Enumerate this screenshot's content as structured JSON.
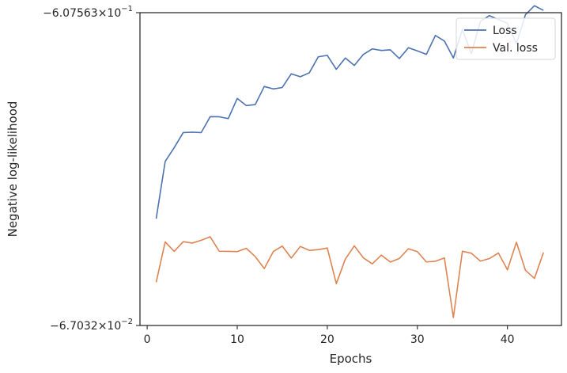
{
  "chart_data": {
    "type": "line",
    "title": "",
    "xlabel": "Epochs",
    "ylabel": "Negative log-likelihood",
    "xlim": [
      -0.8,
      46.0
    ],
    "x_ticks": [
      0,
      10,
      20,
      30,
      40
    ],
    "ylim": [
      -0.607563,
      -0.067032
    ],
    "y_scale": "symlog",
    "y_tick_labels": [
      {
        "value": -0.067032,
        "base": "−6.7032×10",
        "exp": "−2"
      },
      {
        "value": -0.607563,
        "base": "−6.07563×10",
        "exp": "−1"
      }
    ],
    "grid": false,
    "legend_position": "top-right",
    "series": [
      {
        "name": "Loss",
        "color": "#4c72b0",
        "x": [
          1,
          2,
          3,
          4,
          5,
          6,
          7,
          8,
          9,
          10,
          11,
          12,
          13,
          14,
          15,
          16,
          17,
          18,
          19,
          20,
          21,
          22,
          23,
          24,
          25,
          26,
          27,
          28,
          29,
          30,
          31,
          32,
          33,
          34,
          35,
          36,
          37,
          38,
          39,
          40,
          41,
          42,
          43,
          44
        ],
        "y": [
          -0.1423,
          -0.213,
          -0.2347,
          -0.261,
          -0.2617,
          -0.261,
          -0.292,
          -0.2917,
          -0.288,
          -0.332,
          -0.3157,
          -0.3179,
          -0.3612,
          -0.355,
          -0.3586,
          -0.3949,
          -0.3868,
          -0.3977,
          -0.4451,
          -0.4498,
          -0.4076,
          -0.4413,
          -0.419,
          -0.4526,
          -0.4707,
          -0.4656,
          -0.4676,
          -0.4397,
          -0.4745,
          -0.4641,
          -0.4528,
          -0.5175,
          -0.4976,
          -0.4415,
          -0.54,
          -0.4553,
          -0.5718,
          -0.595,
          -0.5789,
          -0.5637,
          -0.4887,
          -0.5989,
          -0.638,
          -0.6175
        ]
      },
      {
        "name": "Val. loss",
        "color": "#dd8452",
        "x": [
          1,
          2,
          3,
          4,
          5,
          6,
          7,
          8,
          9,
          10,
          11,
          12,
          13,
          14,
          15,
          16,
          17,
          18,
          19,
          20,
          21,
          22,
          23,
          24,
          25,
          26,
          27,
          28,
          29,
          30,
          31,
          32,
          33,
          34,
          35,
          36,
          37,
          38,
          39,
          40,
          41,
          42,
          43,
          44
        ],
        "y": [
          -0.0909,
          -0.1208,
          -0.113,
          -0.121,
          -0.1198,
          -0.1222,
          -0.1252,
          -0.1131,
          -0.113,
          -0.1128,
          -0.1155,
          -0.1089,
          -0.1001,
          -0.1128,
          -0.1173,
          -0.1078,
          -0.117,
          -0.1138,
          -0.1144,
          -0.1157,
          -0.09,
          -0.107,
          -0.1175,
          -0.108,
          -0.1035,
          -0.1101,
          -0.1048,
          -0.1075,
          -0.1151,
          -0.1128,
          -0.1049,
          -0.1054,
          -0.1079,
          -0.0709,
          -0.1131,
          -0.1115,
          -0.1055,
          -0.1074,
          -0.1117,
          -0.0992,
          -0.1205,
          -0.0989,
          -0.0934,
          -0.1121
        ]
      }
    ]
  }
}
